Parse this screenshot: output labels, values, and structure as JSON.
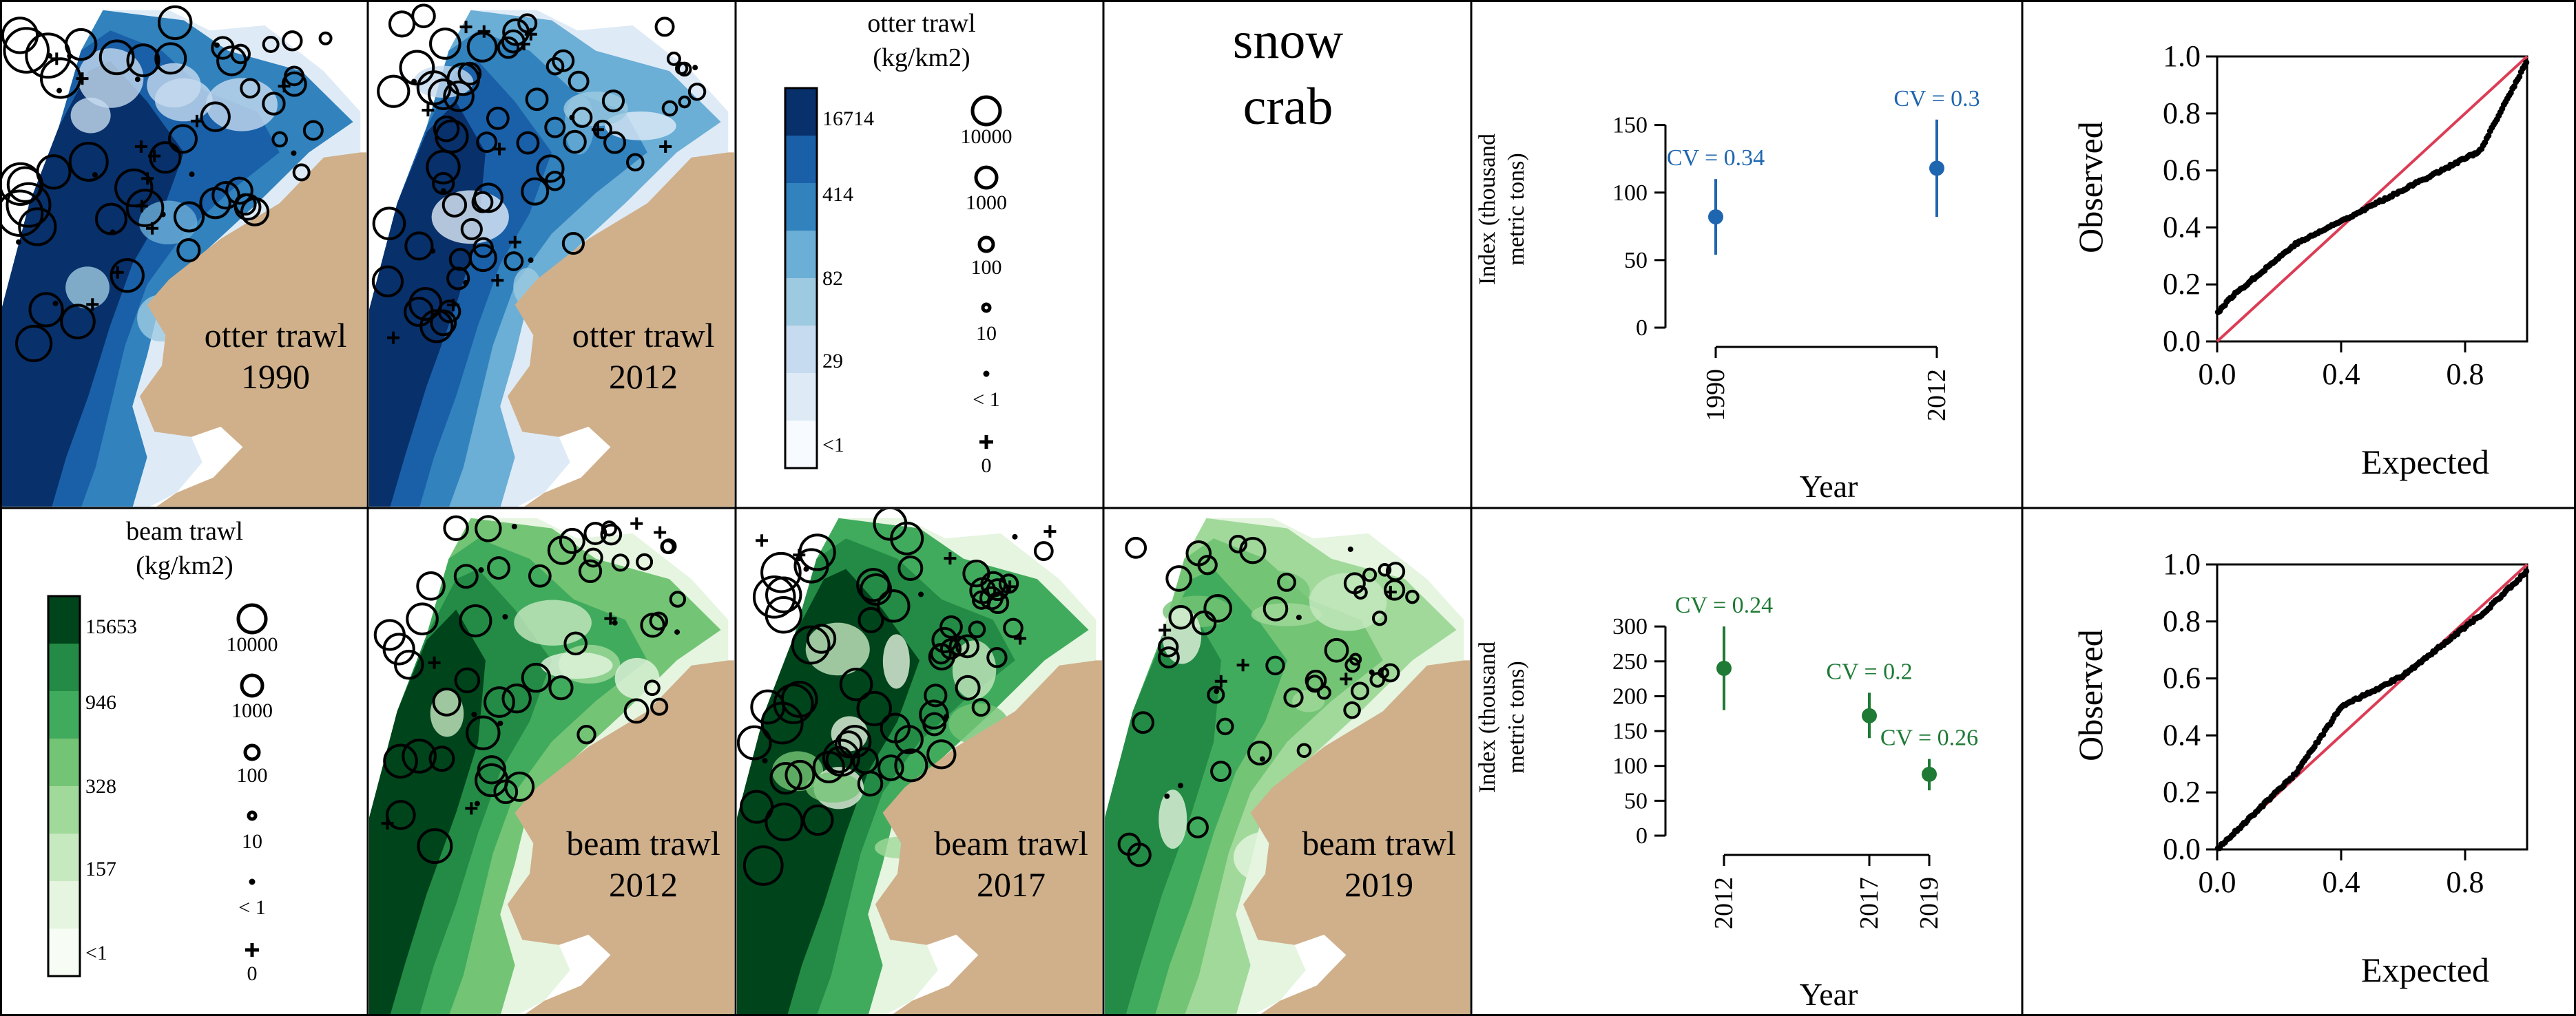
{
  "colors": {
    "land": "#cfb08b",
    "blue": [
      "#f7fbff",
      "#deebf7",
      "#c6dbef",
      "#9ecae1",
      "#6baed6",
      "#3182bd",
      "#1a60a8",
      "#08306b"
    ],
    "green": [
      "#f7fcf5",
      "#e5f5e0",
      "#c7e9c0",
      "#a1d99b",
      "#74c476",
      "#41ab5d",
      "#238b45",
      "#00441b"
    ],
    "index_blue": "#1f66b0",
    "index_green": "#1e7a35",
    "qq_line": "#dc3c55",
    "points": "#000000"
  },
  "species_label": {
    "line1": "snow",
    "line2": "crab"
  },
  "maps": [
    {
      "gear": "otter trawl",
      "year": "1990",
      "palette": "blue",
      "line1": "otter trawl",
      "line2": "1990"
    },
    {
      "gear": "otter trawl",
      "year": "2012",
      "palette": "blue",
      "line1": "otter trawl",
      "line2": "2012"
    },
    {
      "gear": "beam trawl",
      "year": "2012",
      "palette": "green",
      "line1": "beam trawl",
      "line2": "2012"
    },
    {
      "gear": "beam trawl",
      "year": "2017",
      "palette": "green",
      "line1": "beam trawl",
      "line2": "2017"
    },
    {
      "gear": "beam trawl",
      "year": "2019",
      "palette": "green",
      "line1": "beam trawl",
      "line2": "2019"
    }
  ],
  "legends": [
    {
      "title1": "otter trawl",
      "title2": "(kg/km2)",
      "palette": "blue",
      "color_breaks": [
        "16714",
        "414",
        "82",
        "29",
        "<1"
      ],
      "size_labels": [
        "10000",
        "1000",
        "100",
        "10",
        "< 1",
        "0"
      ]
    },
    {
      "title1": "beam trawl",
      "title2": "(kg/km2)",
      "palette": "green",
      "color_breaks": [
        "15653",
        "946",
        "328",
        "157",
        "<1"
      ],
      "size_labels": [
        "10000",
        "1000",
        "100",
        "10",
        "< 1",
        "0"
      ]
    }
  ],
  "chart_data": [
    {
      "type": "scatter",
      "name": "otter trawl biomass index",
      "ylabel": "Index (thousand metric tons)",
      "ylabel1": "Index (thousand",
      "ylabel2": "metric tons)",
      "xlabel": "Year",
      "ylim": [
        0,
        160
      ],
      "yticks": [
        "0",
        "50",
        "100",
        "150"
      ],
      "xticks": [
        "1990",
        "2012"
      ],
      "points": [
        {
          "year": "1990",
          "value": 82,
          "lower": 54,
          "upper": 110,
          "label": "CV = 0.34"
        },
        {
          "year": "2012",
          "value": 118,
          "lower": 82,
          "upper": 154,
          "label": "CV = 0.3"
        }
      ]
    },
    {
      "type": "scatter",
      "name": "otter trawl Q-Q plot",
      "xlabel": "Expected",
      "ylabel": "Observed",
      "xlim": [
        0,
        1
      ],
      "ylim": [
        0,
        1
      ],
      "xticks": [
        "0.0",
        "0.4",
        "0.8"
      ],
      "yticks": [
        "0.0",
        "0.2",
        "0.4",
        "0.6",
        "0.8",
        "1.0"
      ],
      "reference_line": "y = x",
      "shape": "s-shaped: above line for low quantiles, below for high quantiles"
    },
    {
      "type": "scatter",
      "name": "beam trawl biomass index",
      "ylabel": "Index (thousand metric tons)",
      "ylabel1": "Index (thousand",
      "ylabel2": "metric tons)",
      "xlabel": "Year",
      "ylim": [
        0,
        310
      ],
      "yticks": [
        "0",
        "50",
        "100",
        "150",
        "200",
        "250",
        "300"
      ],
      "xticks": [
        "2012",
        "2017",
        "2019"
      ],
      "points": [
        {
          "year": "2012",
          "value": 240,
          "lower": 180,
          "upper": 300,
          "label": "CV = 0.24"
        },
        {
          "year": "2017",
          "value": 172,
          "lower": 140,
          "upper": 205,
          "label": "CV = 0.2"
        },
        {
          "year": "2019",
          "value": 88,
          "lower": 65,
          "upper": 110,
          "label": "CV = 0.26"
        }
      ]
    },
    {
      "type": "scatter",
      "name": "beam trawl Q-Q plot",
      "xlabel": "Expected",
      "ylabel": "Observed",
      "xlim": [
        0,
        1
      ],
      "ylim": [
        0,
        1
      ],
      "xticks": [
        "0.0",
        "0.4",
        "0.8"
      ],
      "yticks": [
        "0.0",
        "0.2",
        "0.4",
        "0.6",
        "0.8",
        "1.0"
      ],
      "reference_line": "y = x",
      "shape": "close to line, slightly above in middle quantiles"
    }
  ]
}
